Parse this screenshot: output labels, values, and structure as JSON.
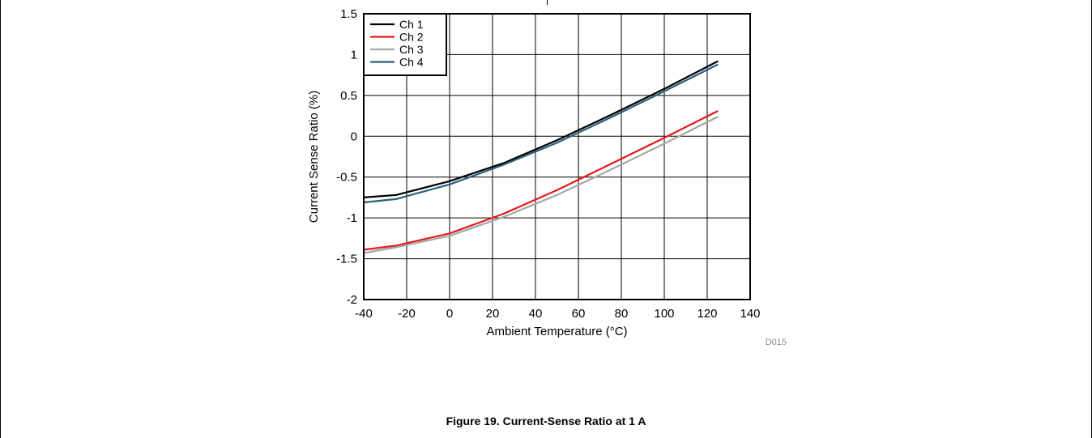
{
  "figure": {
    "id_label": "D015",
    "caption": "Figure 19. Current-Sense Ratio at 1 A"
  },
  "chart_data": {
    "type": "line",
    "title": "",
    "xlabel": "Ambient Temperature (°C)",
    "ylabel": "Current Sense Ratio (%)",
    "xlim": [
      -40,
      140
    ],
    "ylim": [
      -2,
      1.5
    ],
    "xticks": [
      -40,
      -20,
      0,
      20,
      40,
      60,
      80,
      100,
      120,
      140
    ],
    "yticks": [
      -2,
      -1.5,
      -1,
      -0.5,
      0,
      0.5,
      1,
      1.5
    ],
    "xtick_labels": [
      "-40",
      "-20",
      "0",
      "20",
      "40",
      "60",
      "80",
      "100",
      "120",
      "140"
    ],
    "ytick_labels": [
      "-2",
      "-1.5",
      "-1",
      "-0.5",
      "0",
      "0.5",
      "1",
      "1.5"
    ],
    "grid": true,
    "legend_position": "top-left",
    "x": [
      -40,
      -25,
      0,
      25,
      50,
      75,
      100,
      125
    ],
    "series": [
      {
        "name": "Ch 1",
        "color": "#000000",
        "values": [
          -0.75,
          -0.72,
          -0.55,
          -0.33,
          -0.05,
          0.26,
          0.58,
          0.92
        ]
      },
      {
        "name": "Ch 2",
        "color": "#e31a1c",
        "values": [
          -1.39,
          -1.34,
          -1.19,
          -0.95,
          -0.66,
          -0.34,
          -0.02,
          0.31
        ]
      },
      {
        "name": "Ch 3",
        "color": "#a6a6a6",
        "values": [
          -1.43,
          -1.36,
          -1.22,
          -0.99,
          -0.72,
          -0.41,
          -0.09,
          0.24
        ]
      },
      {
        "name": "Ch 4",
        "color": "#2a5f7f",
        "values": [
          -0.81,
          -0.77,
          -0.59,
          -0.35,
          -0.08,
          0.23,
          0.55,
          0.88
        ]
      }
    ]
  }
}
